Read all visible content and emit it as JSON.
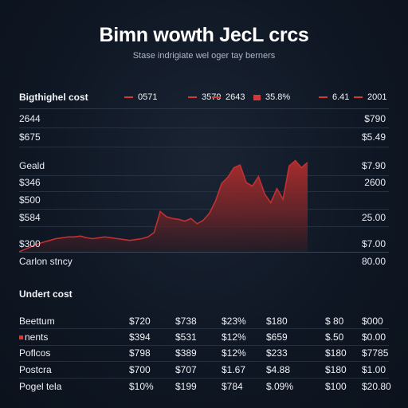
{
  "header": {
    "title": "Bimn wowth JecL crcs",
    "subtitle": "Stase indrigiate wel oger tay berners"
  },
  "chart_panel": {
    "heading": "Bigthighel cost",
    "legend": [
      "0571",
      "3579",
      "2643",
      "35.8%",
      "6.41",
      "2001"
    ],
    "left_labels": [
      "2644",
      "$675",
      "Geald",
      "$346",
      "$500",
      "$584",
      "$300",
      "Carlon stncy"
    ],
    "right_labels": [
      "$790",
      "$5.49",
      "$7.90",
      "2600",
      "25.00",
      "$7.00",
      "80.00"
    ]
  },
  "chart_data": {
    "type": "area",
    "title": "",
    "xlabel": "",
    "ylabel": "",
    "ylim": [
      0,
      100
    ],
    "series": [
      {
        "values": [
          0,
          3,
          6,
          9,
          11,
          13,
          15,
          16,
          17,
          17,
          18,
          16,
          15,
          16,
          17,
          16,
          15,
          14,
          13,
          14,
          15,
          17,
          22,
          46,
          40,
          38,
          37,
          35,
          38,
          32,
          36,
          44,
          58,
          78,
          85,
          96,
          99,
          79,
          75,
          86,
          66,
          56,
          72,
          60,
          98,
          104,
          96,
          102
        ]
      }
    ],
    "colors": {
      "line": "#c23030",
      "fill_top": "#a52a2a",
      "fill_bottom": "#3a1d22"
    }
  },
  "table": {
    "heading": "Undert cost",
    "rows": [
      {
        "label": "Beettum",
        "marker": false,
        "cells": [
          "$720",
          "$738",
          "$23%",
          "$180",
          "$ 80",
          "$000"
        ]
      },
      {
        "label": "nents",
        "marker": true,
        "cells": [
          "$394",
          "$531",
          "$12%",
          "$659",
          "$.50",
          "$0.00"
        ]
      },
      {
        "label": "Poflcos",
        "marker": false,
        "cells": [
          "$798",
          "$389",
          "$12%",
          "$233",
          "$180",
          "$7785"
        ]
      },
      {
        "label": "Postcra",
        "marker": false,
        "cells": [
          "$700",
          "$707",
          "$1.67",
          "$4.88",
          "$180",
          "$1.00"
        ]
      },
      {
        "label": "Pogel tela",
        "marker": false,
        "cells": [
          "$10%",
          "$199",
          "$784",
          "$.09%",
          "$100",
          "$20.80"
        ]
      }
    ]
  }
}
